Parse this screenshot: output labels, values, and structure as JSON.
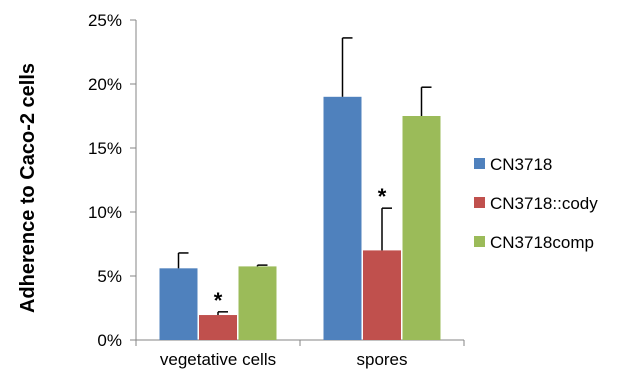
{
  "chart_data": {
    "type": "bar",
    "ylabel": "Adherence to Caco-2 cells",
    "xlabel": "",
    "categories": [
      "vegetative cells",
      "spores"
    ],
    "ylim": [
      0,
      25
    ],
    "yticks": [
      0,
      5,
      10,
      15,
      20,
      25
    ],
    "ytick_labels": [
      "0%",
      "5%",
      "10%",
      "15%",
      "20%",
      "25%"
    ],
    "grid": false,
    "legend_position": "right",
    "series": [
      {
        "name": "CN3718",
        "color": "#4F81BD",
        "values": [
          5.6,
          19.0
        ],
        "errors": [
          1.2,
          4.6
        ]
      },
      {
        "name": "CN3718::cody",
        "color": "#C0504D",
        "values": [
          1.95,
          7.0
        ],
        "errors": [
          0.25,
          3.3
        ]
      },
      {
        "name": "CN3718comp",
        "color": "#9BBB59",
        "values": [
          5.75,
          17.5
        ],
        "errors": [
          0.1,
          2.25
        ]
      }
    ],
    "annotations": [
      {
        "text": "*",
        "category": 0,
        "series": 1
      },
      {
        "text": "*",
        "category": 1,
        "series": 1
      }
    ]
  }
}
